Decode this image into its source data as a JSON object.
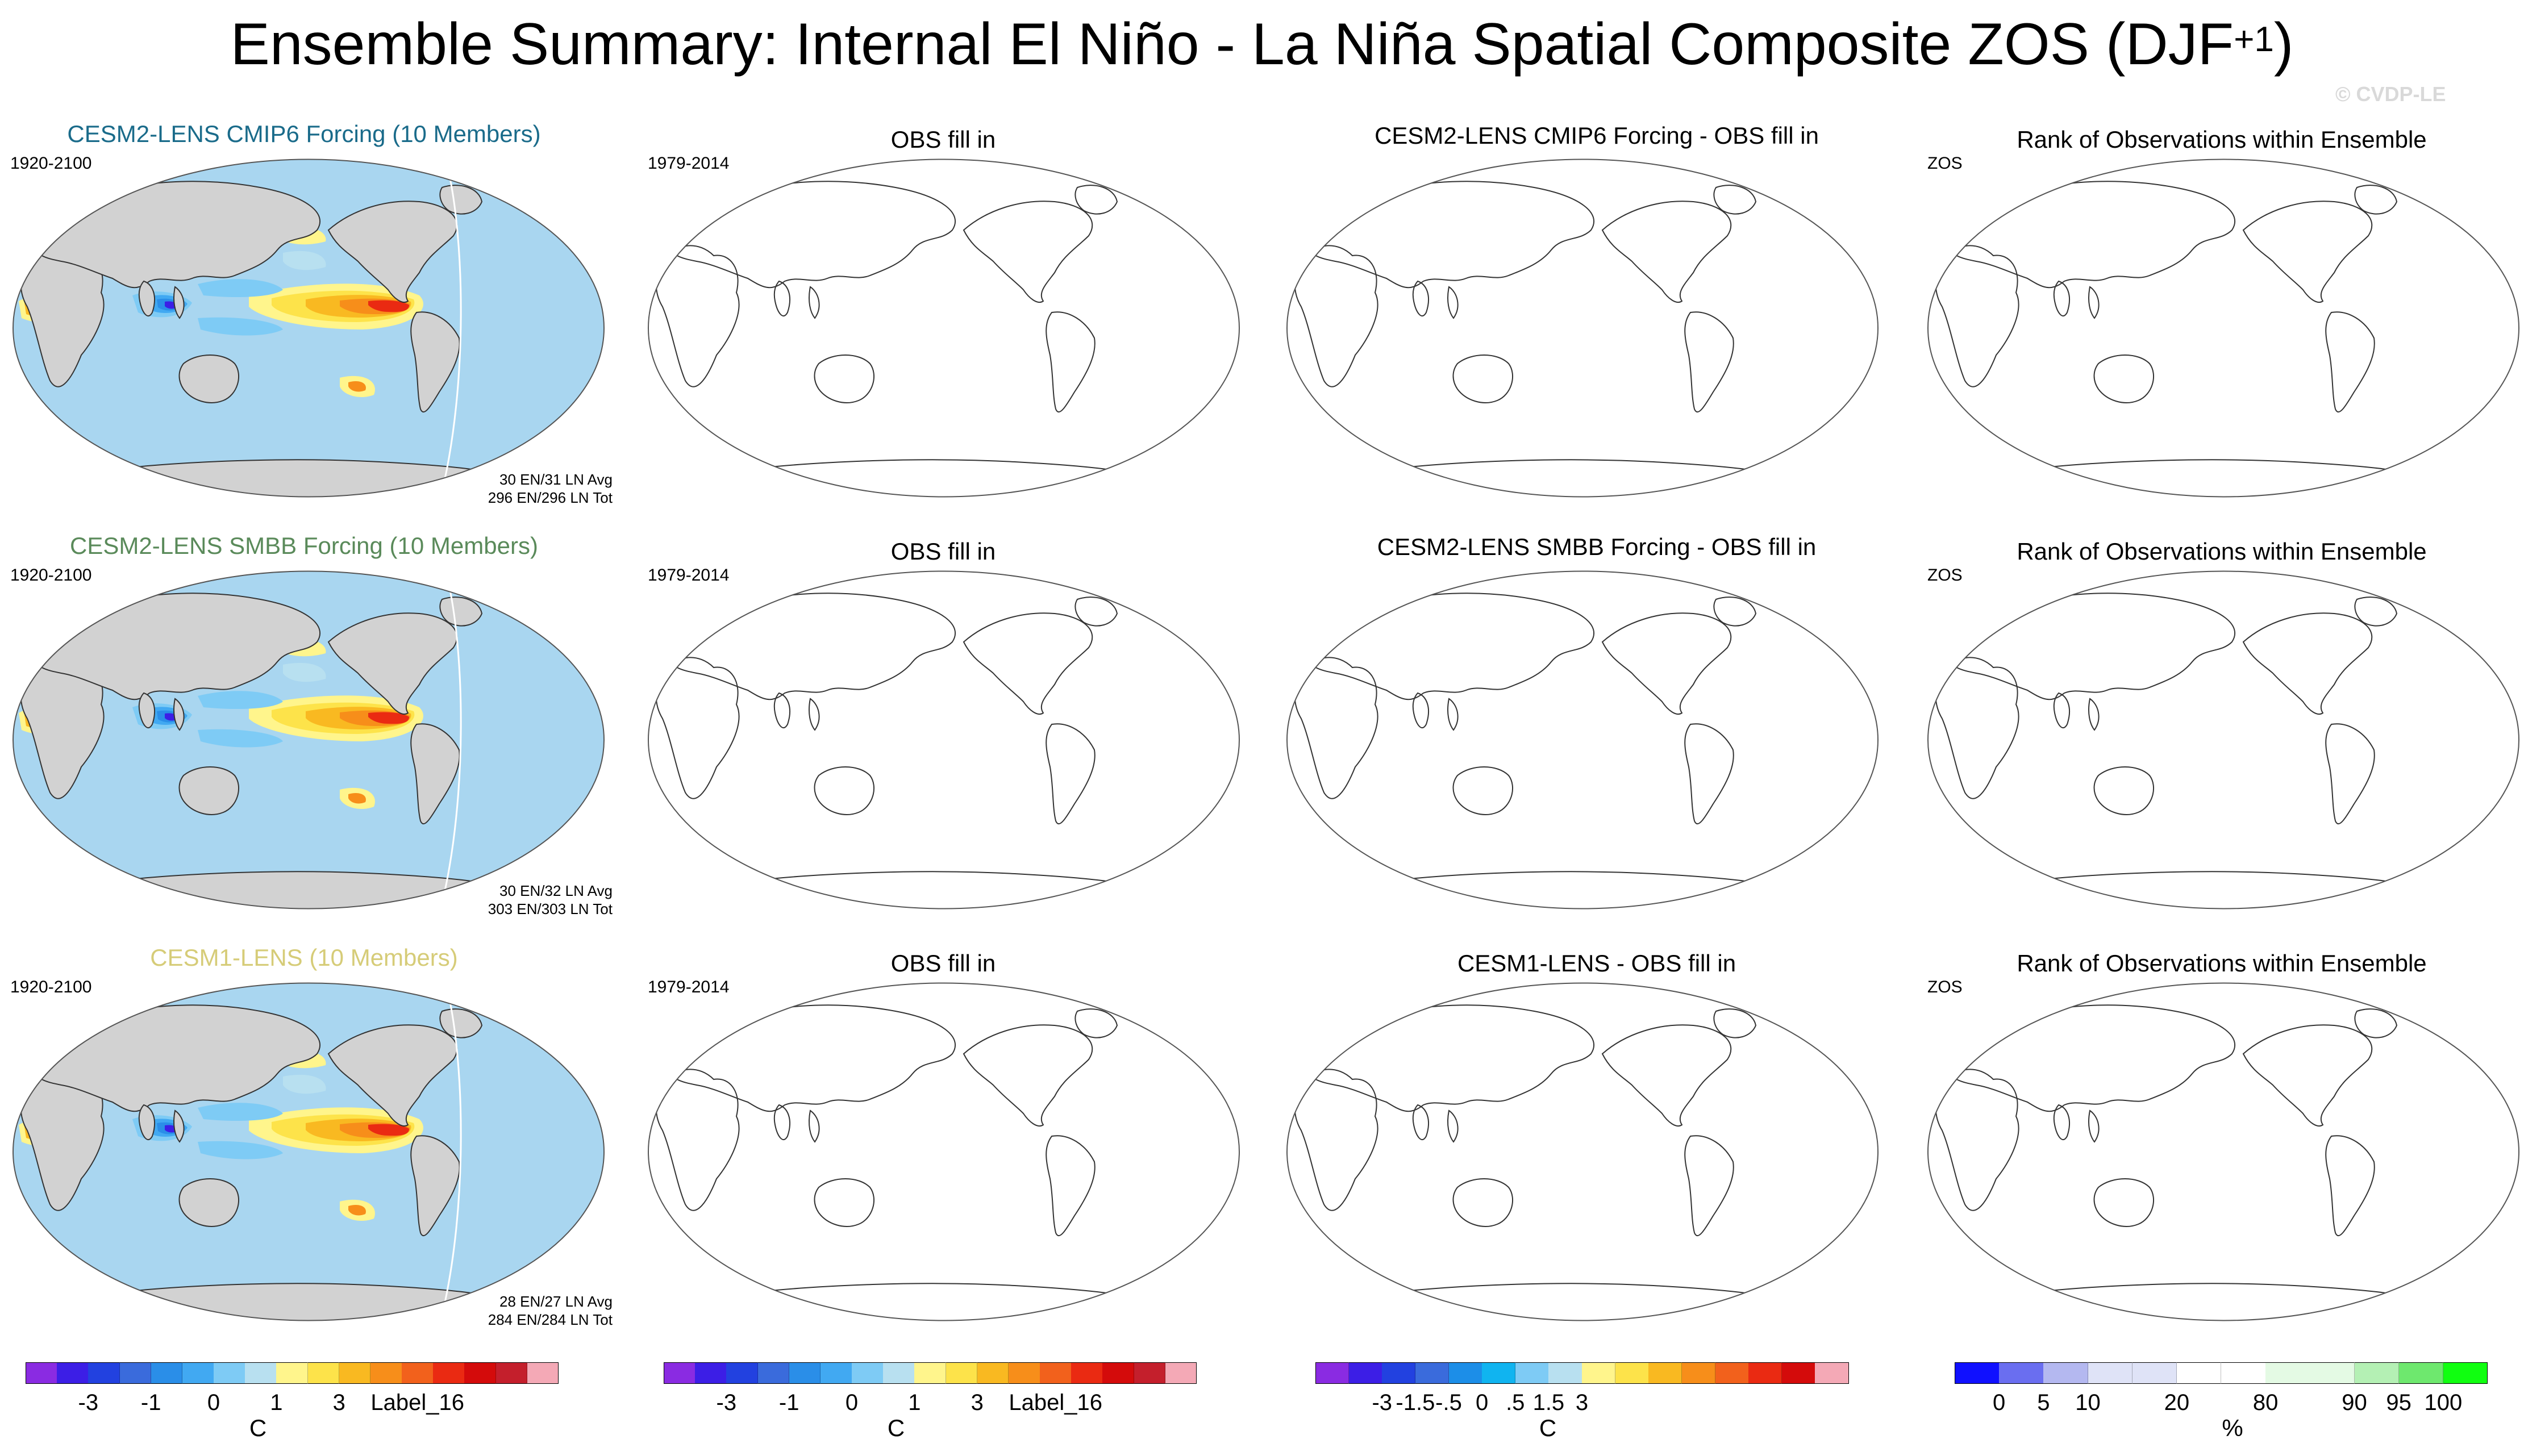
{
  "title": {
    "main": "Ensemble Summary: Internal El Niño - La Niña Spatial Composite ZOS (DJF",
    "superscript": "+1",
    "close": ")"
  },
  "watermark": "© CVDP-LE",
  "colors": {
    "land": "#d2d2d2",
    "coast": "#333333",
    "ocean_base": "#a9d6f0",
    "cmip6_title": "#1a6b8a",
    "smbb_title": "#5a8a5a",
    "lens1_title": "#d6cc78"
  },
  "rows": [
    {
      "ensemble_title": "CESM2-LENS CMIP6 Forcing (10 Members)",
      "years": "1920-2100",
      "counts": [
        "30 EN/31 LN Avg",
        "296 EN/296 LN Tot"
      ],
      "obs_title": "OBS fill in",
      "obs_years": "1979-2014",
      "diff_title": "CESM2-LENS CMIP6 Forcing - OBS fill in",
      "rank_title": "Rank of Observations within Ensemble",
      "rank_label": "ZOS"
    },
    {
      "ensemble_title": "CESM2-LENS SMBB Forcing (10 Members)",
      "years": "1920-2100",
      "counts": [
        "30 EN/32 LN Avg",
        "303 EN/303 LN Tot"
      ],
      "obs_title": "OBS fill in",
      "obs_years": "1979-2014",
      "diff_title": "CESM2-LENS SMBB Forcing - OBS fill in",
      "rank_title": "Rank of Observations within Ensemble",
      "rank_label": "ZOS"
    },
    {
      "ensemble_title": "CESM1-LENS (10 Members)",
      "years": "1920-2100",
      "counts": [
        "28 EN/27 LN Avg",
        "284 EN/284 LN Tot"
      ],
      "obs_title": "OBS fill in",
      "obs_years": "1979-2014",
      "diff_title": "CESM1-LENS - OBS fill in",
      "rank_title": "Rank of Observations within Ensemble",
      "rank_label": "ZOS"
    }
  ],
  "chart_data": {
    "type": "heatmap",
    "description_of_fields": "global map panels of DJF+1 ZOS El Niño minus La Niña composites",
    "panels": [
      {
        "row": 1,
        "col": 1,
        "content": "filled",
        "field": "ensemble composite"
      },
      {
        "row": 1,
        "col": 2,
        "content": "empty"
      },
      {
        "row": 1,
        "col": 3,
        "content": "empty"
      },
      {
        "row": 1,
        "col": 4,
        "content": "empty"
      },
      {
        "row": 2,
        "col": 1,
        "content": "filled",
        "field": "ensemble composite"
      },
      {
        "row": 2,
        "col": 2,
        "content": "empty"
      },
      {
        "row": 2,
        "col": 3,
        "content": "empty"
      },
      {
        "row": 2,
        "col": 4,
        "content": "empty"
      },
      {
        "row": 3,
        "col": 1,
        "content": "filled",
        "field": "ensemble composite"
      },
      {
        "row": 3,
        "col": 2,
        "content": "empty"
      },
      {
        "row": 3,
        "col": 3,
        "content": "empty"
      },
      {
        "row": 3,
        "col": 4,
        "content": "empty"
      }
    ],
    "colorbars": [
      {
        "unit": "C",
        "colors": [
          "#8a2be2",
          "#3c1ee6",
          "#2241e0",
          "#3a6bdc",
          "#2a8ee8",
          "#41a9f2",
          "#7ecbf5",
          "#b8e0f0",
          "#fff58c",
          "#fde34a",
          "#f9b921",
          "#f78e1a",
          "#f2611c",
          "#ea2a12",
          "#d40b0b",
          "#c41f2c",
          "#f4a9b6"
        ],
        "ticks": [
          {
            "label": "-3",
            "pos": 2
          },
          {
            "label": "-1",
            "pos": 4
          },
          {
            "label": "0",
            "pos": 6
          },
          {
            "label": "1",
            "pos": 8
          },
          {
            "label": "3",
            "pos": 10
          },
          {
            "label": "Label_16",
            "pos": 12.5
          }
        ]
      },
      {
        "unit": "C",
        "colors": [
          "#8a2be2",
          "#3c1ee6",
          "#2241e0",
          "#3a6bdc",
          "#2a8ee8",
          "#41a9f2",
          "#7ecbf5",
          "#b8e0f0",
          "#fff58c",
          "#fde34a",
          "#f9b921",
          "#f78e1a",
          "#f2611c",
          "#ea2a12",
          "#d40b0b",
          "#c41f2c",
          "#f4a9b6"
        ],
        "ticks": [
          {
            "label": "-3",
            "pos": 2
          },
          {
            "label": "-1",
            "pos": 4
          },
          {
            "label": "0",
            "pos": 6
          },
          {
            "label": "1",
            "pos": 8
          },
          {
            "label": "3",
            "pos": 10
          },
          {
            "label": "Label_16",
            "pos": 12.5
          }
        ]
      },
      {
        "unit": "C",
        "colors": [
          "#8a2be2",
          "#3c1ee6",
          "#2241e0",
          "#3a6bdc",
          "#1c8ee8",
          "#10b4f0",
          "#7ecbf5",
          "#b8e0f0",
          "#fff58c",
          "#fde34a",
          "#f9b921",
          "#f78e1a",
          "#f2611c",
          "#ea2a12",
          "#d40b0b",
          "#f4a9b6"
        ],
        "ticks": [
          {
            "label": "-3",
            "pos": 2
          },
          {
            "label": "-1.5",
            "pos": 3
          },
          {
            "label": "-.5",
            "pos": 4
          },
          {
            "label": "0",
            "pos": 5
          },
          {
            "label": ".5",
            "pos": 6
          },
          {
            "label": "1.5",
            "pos": 7
          },
          {
            "label": "3",
            "pos": 8
          }
        ]
      },
      {
        "unit": "%",
        "colors": [
          "#1010ff",
          "#6a6ef0",
          "#b4b8f0",
          "#dfe3f7",
          "#dfe3f7",
          "#ffffff",
          "#ffffff",
          "#e4fae4",
          "#e4fae4",
          "#b4f0b4",
          "#6ee86e",
          "#10ff10"
        ],
        "ticks": [
          {
            "label": "0",
            "pos": 1
          },
          {
            "label": "5",
            "pos": 2
          },
          {
            "label": "10",
            "pos": 3
          },
          {
            "label": "20",
            "pos": 5
          },
          {
            "label": "80",
            "pos": 7
          },
          {
            "label": "90",
            "pos": 9
          },
          {
            "label": "95",
            "pos": 10
          },
          {
            "label": "100",
            "pos": 11
          }
        ]
      }
    ]
  }
}
